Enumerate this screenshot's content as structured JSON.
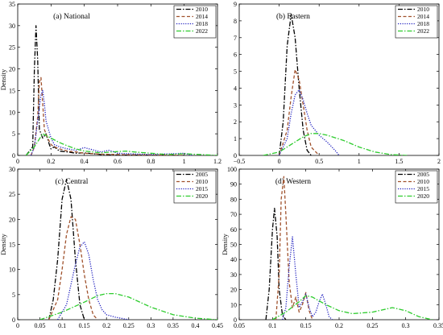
{
  "chart_data": [
    {
      "type": "line",
      "panel_label": "(a) National",
      "ylabel": "Density",
      "xlim": [
        0,
        1.2
      ],
      "ylim": [
        0,
        35
      ],
      "xticks": [
        "0",
        "0.2",
        "0.4",
        "0.6",
        "0.8",
        "1",
        "1.2"
      ],
      "xtick_values": [
        0,
        0.2,
        0.4,
        0.6,
        0.8,
        1,
        1.2
      ],
      "yticks": [
        "0",
        "5",
        "10",
        "15",
        "20",
        "25",
        "30",
        "35"
      ],
      "ytick_values": [
        0,
        5,
        10,
        15,
        20,
        25,
        30,
        35
      ],
      "legend_position": "top-right",
      "series": [
        {
          "name": "2010",
          "color": "#000000",
          "dash": "dashdot",
          "x": [
            0.05,
            0.09,
            0.1,
            0.11,
            0.12,
            0.13,
            0.15,
            0.17,
            0.19,
            0.2,
            0.22,
            0.25,
            0.3,
            0.35,
            0.4,
            0.5,
            0.6,
            1.0
          ],
          "y": [
            0,
            2,
            20,
            30,
            22,
            6,
            4,
            5,
            2.5,
            1.5,
            2,
            1,
            0.8,
            0.5,
            0.6,
            0.2,
            0.1,
            0
          ]
        },
        {
          "name": "2014",
          "color": "#a0522d",
          "dash": "dashed",
          "x": [
            0.08,
            0.1,
            0.12,
            0.13,
            0.14,
            0.15,
            0.16,
            0.18,
            0.2,
            0.22,
            0.25,
            0.3,
            0.35,
            0.4,
            0.5,
            0.6,
            1.0
          ],
          "y": [
            0,
            2,
            9,
            17,
            18,
            12,
            6,
            4,
            2.5,
            2,
            1.5,
            1,
            0.8,
            0.5,
            0.3,
            0.2,
            0
          ]
        },
        {
          "name": "2018",
          "color": "#1f1fbf",
          "dash": "dotted",
          "x": [
            0.08,
            0.1,
            0.12,
            0.14,
            0.15,
            0.16,
            0.17,
            0.2,
            0.22,
            0.25,
            0.3,
            0.35,
            0.4,
            0.45,
            0.5,
            0.55,
            0.6,
            0.8,
            1.0,
            1.05
          ],
          "y": [
            0,
            2,
            8,
            14,
            15,
            12,
            8,
            4,
            2.5,
            2,
            1.5,
            1.2,
            1.8,
            1.3,
            0.8,
            1.2,
            0.5,
            0.2,
            0.5,
            0
          ]
        },
        {
          "name": "2022",
          "color": "#2ecc2e",
          "dash": "dashdot",
          "x": [
            0.05,
            0.1,
            0.15,
            0.2,
            0.25,
            0.3,
            0.35,
            0.4,
            0.5,
            0.6,
            0.65,
            0.7,
            0.8,
            0.9,
            1.0,
            1.1,
            1.2
          ],
          "y": [
            0,
            2,
            5,
            4,
            3,
            2.2,
            1.5,
            1.0,
            0.6,
            0.9,
            1.0,
            0.8,
            0.5,
            0.2,
            0.4,
            0.2,
            0
          ]
        }
      ]
    },
    {
      "type": "line",
      "panel_label": "(b) Eastern",
      "ylabel": "",
      "xlim": [
        -0.5,
        2
      ],
      "ylim": [
        0,
        9
      ],
      "xticks": [
        "−0.5",
        "0",
        "0.5",
        "1",
        "1.5",
        "2"
      ],
      "xtick_values": [
        -0.5,
        0,
        0.5,
        1,
        1.5,
        2
      ],
      "yticks": [
        "0",
        "1",
        "2",
        "3",
        "4",
        "5",
        "6",
        "7",
        "8",
        "9"
      ],
      "ytick_values": [
        0,
        1,
        2,
        3,
        4,
        5,
        6,
        7,
        8,
        9
      ],
      "legend_position": "top-right",
      "series": [
        {
          "name": "2010",
          "color": "#000000",
          "dash": "dashdot",
          "x": [
            0.0,
            0.05,
            0.1,
            0.15,
            0.2,
            0.25,
            0.3,
            0.35,
            0.4
          ],
          "y": [
            0,
            2,
            6.5,
            8.4,
            7,
            4,
            1.5,
            0.3,
            0
          ]
        },
        {
          "name": "2014",
          "color": "#a0522d",
          "dash": "dashed",
          "x": [
            0.0,
            0.1,
            0.15,
            0.2,
            0.25,
            0.3,
            0.35,
            0.4,
            0.5
          ],
          "y": [
            0,
            1.5,
            3.5,
            5.1,
            4.5,
            3,
            1.5,
            0.5,
            0
          ]
        },
        {
          "name": "2018",
          "color": "#1f1fbf",
          "dash": "dotted",
          "x": [
            0.0,
            0.1,
            0.15,
            0.2,
            0.25,
            0.3,
            0.35,
            0.4,
            0.5,
            0.6,
            0.7,
            0.75
          ],
          "y": [
            0,
            1,
            2.5,
            3.6,
            3.9,
            3.3,
            2.5,
            1.8,
            1.2,
            0.8,
            0.3,
            0
          ]
        },
        {
          "name": "2022",
          "color": "#2ecc2e",
          "dash": "dashdot",
          "x": [
            -0.2,
            0.0,
            0.2,
            0.3,
            0.4,
            0.5,
            0.6,
            0.8,
            1.0,
            1.2,
            1.4,
            1.6
          ],
          "y": [
            0,
            0.2,
            0.8,
            1.1,
            1.3,
            1.3,
            1.2,
            0.9,
            0.5,
            0.2,
            0.05,
            0
          ]
        }
      ]
    },
    {
      "type": "line",
      "panel_label": "(c) Central",
      "ylabel": "Density",
      "xlim": [
        0,
        0.45
      ],
      "ylim": [
        0,
        30
      ],
      "xticks": [
        "0",
        "0.05",
        "0.1",
        "0.15",
        "0.2",
        "0.25",
        "0.3",
        "0.35",
        "0.4",
        "0.45"
      ],
      "xtick_values": [
        0,
        0.05,
        0.1,
        0.15,
        0.2,
        0.25,
        0.3,
        0.35,
        0.4,
        0.45
      ],
      "yticks": [
        "0",
        "5",
        "10",
        "15",
        "20",
        "25",
        "30"
      ],
      "ytick_values": [
        0,
        5,
        10,
        15,
        20,
        25,
        30
      ],
      "legend_position": "top-right",
      "series": [
        {
          "name": "2005",
          "color": "#000000",
          "dash": "dashdot",
          "x": [
            0.07,
            0.08,
            0.09,
            0.1,
            0.11,
            0.12,
            0.13,
            0.14,
            0.15
          ],
          "y": [
            0,
            4,
            12,
            24,
            28,
            24,
            12,
            3,
            0
          ]
        },
        {
          "name": "2010",
          "color": "#a0522d",
          "dash": "dashed",
          "x": [
            0.07,
            0.09,
            0.1,
            0.11,
            0.12,
            0.13,
            0.14,
            0.15,
            0.16,
            0.17,
            0.18
          ],
          "y": [
            0,
            4,
            10,
            17,
            20.5,
            20,
            15,
            9,
            4,
            1,
            0
          ]
        },
        {
          "name": "2015",
          "color": "#1f1fbf",
          "dash": "dotted",
          "x": [
            0.09,
            0.11,
            0.12,
            0.13,
            0.14,
            0.15,
            0.16,
            0.17,
            0.18,
            0.19,
            0.2,
            0.22,
            0.25
          ],
          "y": [
            0,
            3,
            7,
            11,
            14.5,
            15.5,
            13,
            8,
            4,
            2,
            1,
            0.5,
            0
          ]
        },
        {
          "name": "2020",
          "color": "#2ecc2e",
          "dash": "dashdot",
          "x": [
            0.05,
            0.1,
            0.15,
            0.18,
            0.2,
            0.22,
            0.25,
            0.3,
            0.35,
            0.4,
            0.45
          ],
          "y": [
            0,
            1.5,
            3.5,
            4.8,
            5.2,
            5.2,
            4.5,
            2.5,
            1.0,
            0.3,
            0
          ]
        }
      ]
    },
    {
      "type": "line",
      "panel_label": "(d) Western",
      "ylabel": "Density",
      "xlim": [
        0.05,
        0.35
      ],
      "ylim": [
        0,
        100
      ],
      "xticks": [
        "0.05",
        "0.1",
        "0.15",
        "0.2",
        "0.25",
        "0.3",
        "0.35"
      ],
      "xtick_values": [
        0.05,
        0.1,
        0.15,
        0.2,
        0.25,
        0.3,
        0.35
      ],
      "yticks": [
        "0",
        "10",
        "20",
        "30",
        "40",
        "50",
        "60",
        "70",
        "80",
        "90",
        "100"
      ],
      "ytick_values": [
        0,
        10,
        20,
        30,
        40,
        50,
        60,
        70,
        80,
        90,
        100
      ],
      "legend_position": "top-right",
      "series": [
        {
          "name": "2005",
          "color": "#000000",
          "dash": "dashdot",
          "x": [
            0.09,
            0.095,
            0.1,
            0.103,
            0.107,
            0.11,
            0.115,
            0.12
          ],
          "y": [
            0,
            20,
            60,
            74,
            55,
            20,
            3,
            0
          ]
        },
        {
          "name": "2010",
          "color": "#a0522d",
          "dash": "dashed",
          "x": [
            0.105,
            0.11,
            0.113,
            0.117,
            0.12,
            0.125,
            0.13,
            0.135,
            0.14,
            0.145,
            0.15,
            0.155,
            0.16
          ],
          "y": [
            0,
            30,
            80,
            95,
            70,
            25,
            8,
            15,
            5,
            10,
            18,
            6,
            0
          ]
        },
        {
          "name": "2015",
          "color": "#1f1fbf",
          "dash": "dotted",
          "x": [
            0.115,
            0.12,
            0.125,
            0.13,
            0.135,
            0.14,
            0.145,
            0.15,
            0.155,
            0.16,
            0.165,
            0.17,
            0.175,
            0.18,
            0.185,
            0.19
          ],
          "y": [
            0,
            8,
            35,
            55,
            30,
            8,
            12,
            17,
            8,
            2,
            5,
            12,
            17,
            10,
            2,
            0
          ]
        },
        {
          "name": "2020",
          "color": "#2ecc2e",
          "dash": "dashdot",
          "x": [
            0.1,
            0.12,
            0.14,
            0.15,
            0.16,
            0.18,
            0.2,
            0.22,
            0.25,
            0.27,
            0.28,
            0.3,
            0.32,
            0.34
          ],
          "y": [
            0,
            5,
            12,
            16,
            15,
            10,
            6,
            4,
            5,
            7,
            8,
            6,
            2,
            0
          ]
        }
      ]
    }
  ]
}
